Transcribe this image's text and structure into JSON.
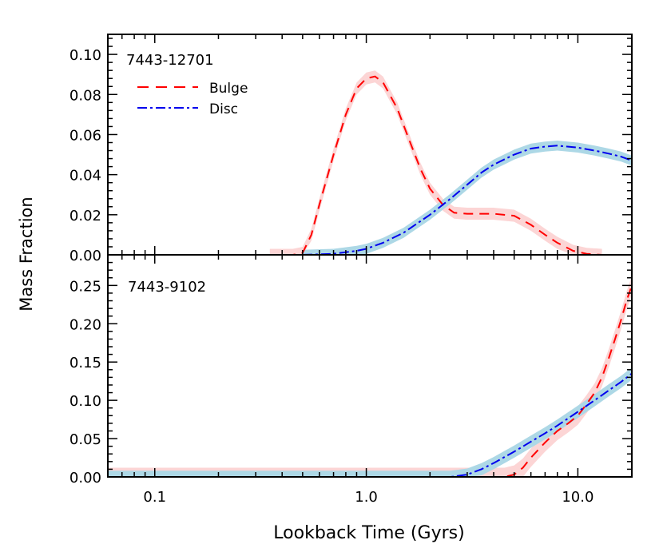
{
  "chart_data": [
    {
      "type": "line",
      "panel_label": "7443-12701",
      "ylabel": "Mass Fraction",
      "xlabel": "Lookback Time (Gyrs)",
      "xscale": "log",
      "xlim": [
        0.06,
        18
      ],
      "ylim": [
        0,
        0.11
      ],
      "xticks": [
        0.1,
        1.0,
        10.0
      ],
      "xtick_labels": [
        "0.1",
        "1.0",
        "10.0"
      ],
      "yticks": [
        0,
        0.02,
        0.04,
        0.06,
        0.08,
        0.1
      ],
      "ytick_labels": [
        "0.00",
        "0.02",
        "0.04",
        "0.06",
        "0.08",
        "0.10"
      ],
      "legend": "top-left",
      "series": [
        {
          "name": "Bulge",
          "style": "dashed",
          "color": "#ff0000",
          "band_color": "#fcd5d5",
          "band_halfwidth": 0.003,
          "x": [
            0.35,
            0.45,
            0.5,
            0.55,
            0.6,
            0.7,
            0.8,
            0.9,
            1.0,
            1.1,
            1.2,
            1.4,
            1.6,
            1.8,
            2.0,
            2.3,
            2.6,
            3.0,
            3.5,
            4.0,
            5.0,
            6.0,
            7.0,
            8.0,
            9.5,
            11.0,
            13.0
          ],
          "y": [
            0,
            0,
            0.001,
            0.01,
            0.025,
            0.05,
            0.07,
            0.083,
            0.088,
            0.089,
            0.086,
            0.073,
            0.057,
            0.043,
            0.033,
            0.025,
            0.021,
            0.0205,
            0.0205,
            0.0205,
            0.0195,
            0.015,
            0.01,
            0.006,
            0.002,
            0.0005,
            0
          ]
        },
        {
          "name": "Disc",
          "style": "dashdot",
          "color": "#0000ee",
          "band_color": "#add8e6",
          "band_halfwidth": 0.0025,
          "x": [
            0.5,
            0.7,
            0.9,
            1.0,
            1.2,
            1.5,
            2.0,
            2.5,
            3.0,
            3.5,
            4.0,
            5.0,
            6.0,
            7.0,
            8.0,
            10.0,
            12.0,
            14.0,
            16.0,
            18.0
          ],
          "y": [
            0,
            0.0005,
            0.002,
            0.003,
            0.006,
            0.011,
            0.02,
            0.028,
            0.035,
            0.041,
            0.045,
            0.05,
            0.053,
            0.054,
            0.0545,
            0.0535,
            0.052,
            0.0505,
            0.049,
            0.047
          ]
        }
      ]
    },
    {
      "type": "line",
      "panel_label": "7443-9102",
      "xscale": "log",
      "xlim": [
        0.06,
        18
      ],
      "ylim": [
        0,
        0.29
      ],
      "xticks": [
        0.1,
        1.0,
        10.0
      ],
      "xtick_labels": [
        "0.1",
        "1.0",
        "10.0"
      ],
      "yticks": [
        0,
        0.05,
        0.1,
        0.15,
        0.2,
        0.25
      ],
      "ytick_labels": [
        "0.00",
        "0.05",
        "0.10",
        "0.15",
        "0.20",
        "0.25"
      ],
      "series": [
        {
          "name": "Bulge",
          "style": "dashed",
          "color": "#ff0000",
          "band_color": "#fcd5d5",
          "band_halfwidth": 0.012,
          "x": [
            0.06,
            3.0,
            4.5,
            5.0,
            5.5,
            6.0,
            7.0,
            8.0,
            9.0,
            10.0,
            11.0,
            12.0,
            13.0,
            14.0,
            15.0,
            16.0,
            17.0,
            18.0
          ],
          "y": [
            0,
            0,
            0,
            0.003,
            0.012,
            0.025,
            0.045,
            0.06,
            0.07,
            0.08,
            0.095,
            0.11,
            0.13,
            0.155,
            0.18,
            0.205,
            0.23,
            0.25
          ]
        },
        {
          "name": "Disc",
          "style": "dashdot",
          "color": "#0000ee",
          "band_color": "#add8e6",
          "band_halfwidth": 0.008,
          "x": [
            0.06,
            2.5,
            3.0,
            3.5,
            4.0,
            5.0,
            6.0,
            7.0,
            8.0,
            10.0,
            12.0,
            14.0,
            16.0,
            18.0
          ],
          "y": [
            0,
            0,
            0.003,
            0.01,
            0.018,
            0.033,
            0.046,
            0.057,
            0.067,
            0.085,
            0.1,
            0.113,
            0.124,
            0.135
          ]
        }
      ]
    }
  ],
  "legend_items": [
    {
      "label": "Bulge"
    },
    {
      "label": "Disc"
    }
  ]
}
